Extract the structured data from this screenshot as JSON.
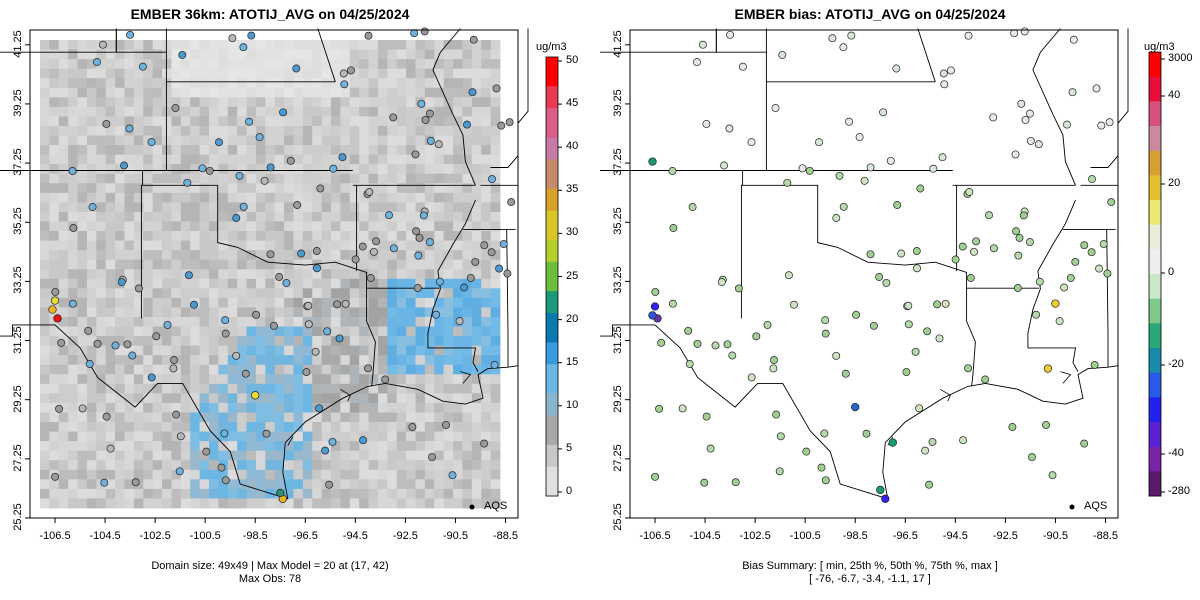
{
  "left_panel": {
    "title": "EMBER 36km: ATOTIJ_AVG on 04/25/2024",
    "y_ticks": [
      "41.25",
      "39.25",
      "37.25",
      "35.25",
      "33.25",
      "31.25",
      "29.25",
      "27.25",
      "25.25"
    ],
    "x_ticks": [
      "-106.5",
      "-104.5",
      "-102.5",
      "-100.5",
      "-98.5",
      "-96.5",
      "-94.5",
      "-92.5",
      "-90.5",
      "-88.5"
    ],
    "legend_label": "AQS",
    "footer_line1": "Domain size: 49x49 | Max Model = 20 at (17, 42)",
    "footer_line2": "Max Obs: 78",
    "colorbar": {
      "unit": "ug/m3",
      "ticks": [
        "50",
        "45",
        "40",
        "35",
        "30",
        "25",
        "20",
        "15",
        "10",
        "5",
        "0"
      ],
      "min": 0,
      "max": 50
    }
  },
  "right_panel": {
    "title": "EMBER bias: ATOTIJ_AVG on 04/25/2024",
    "y_ticks": [
      "41.25",
      "39.25",
      "37.25",
      "35.25",
      "33.25",
      "31.25",
      "29.25",
      "27.25",
      "25.25"
    ],
    "x_ticks": [
      "-106.5",
      "-104.5",
      "-102.5",
      "-100.5",
      "-98.5",
      "-96.5",
      "-94.5",
      "-92.5",
      "-90.5",
      "-88.5"
    ],
    "legend_label": "AQS",
    "footer_line1": "Bias Summary: [ min, 25th %, 50th %, 75th %, max ]",
    "footer_line2": "[ -76,   -6.7,   -3.4,   -1.1,   17 ]",
    "colorbar": {
      "unit": "ug/m3",
      "ticks": [
        "3000",
        "40",
        "20",
        "0",
        "-20",
        "-40",
        "-280"
      ]
    }
  },
  "colors": {
    "gray_bg": "#d3d3d3",
    "blue_plume": "#6cb6e4",
    "obs_high": "#e81010",
    "obs_mid": "#f0b020",
    "bias_low": "#3322ee",
    "bias_pos": "#eecc33"
  },
  "chart_data": [
    {
      "type": "map",
      "title": "EMBER 36km: ATOTIJ_AVG on 04/25/2024",
      "xlim": [
        -107.5,
        -88
      ],
      "ylim": [
        25.25,
        41.75
      ],
      "colorbar_range": [
        0,
        50
      ],
      "stations_sample": [
        {
          "lon": -106.4,
          "lat": 32.0,
          "value": 50
        },
        {
          "lon": -106.6,
          "lat": 32.3,
          "value": 35
        },
        {
          "lon": -106.5,
          "lat": 32.6,
          "value": 30
        },
        {
          "lon": -97.4,
          "lat": 25.9,
          "value": 35
        },
        {
          "lon": -98.5,
          "lat": 29.4,
          "value": 28
        },
        {
          "lon": -97.5,
          "lat": 26.1,
          "value": 20
        }
      ]
    },
    {
      "type": "map",
      "title": "EMBER bias: ATOTIJ_AVG on 04/25/2024",
      "xlim": [
        -107.5,
        -88
      ],
      "ylim": [
        25.25,
        41.75
      ],
      "bias_summary": {
        "min": -76,
        "p25": -6.7,
        "p50": -3.4,
        "p75": -1.1,
        "max": 17
      }
    }
  ]
}
